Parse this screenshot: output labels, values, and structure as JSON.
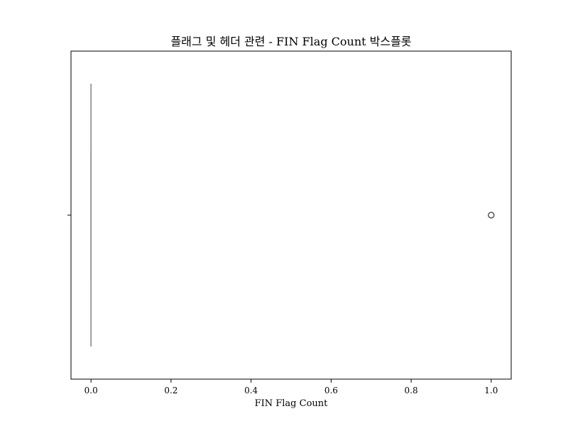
{
  "chart_data": {
    "type": "box",
    "title": "플래그 및 헤더 관련 - FIN Flag Count 박스플롯",
    "xlabel": "FIN Flag Count",
    "ylabel": "",
    "orientation": "horizontal",
    "xlim": [
      -0.05,
      1.05
    ],
    "xticks": [
      0.0,
      0.2,
      0.4,
      0.6,
      0.8,
      1.0
    ],
    "xtick_labels": [
      "0.0",
      "0.2",
      "0.4",
      "0.6",
      "0.8",
      "1.0"
    ],
    "grid": false,
    "legend": "none",
    "box": {
      "q1": 0.0,
      "median": 0.0,
      "q3": 0.0,
      "whisker_low": 0.0,
      "whisker_high": 0.0
    },
    "outliers": [
      1.0
    ],
    "colors": {
      "box_line": "#8c8c8c",
      "outlier": "#555555",
      "axes": "#000000"
    }
  }
}
